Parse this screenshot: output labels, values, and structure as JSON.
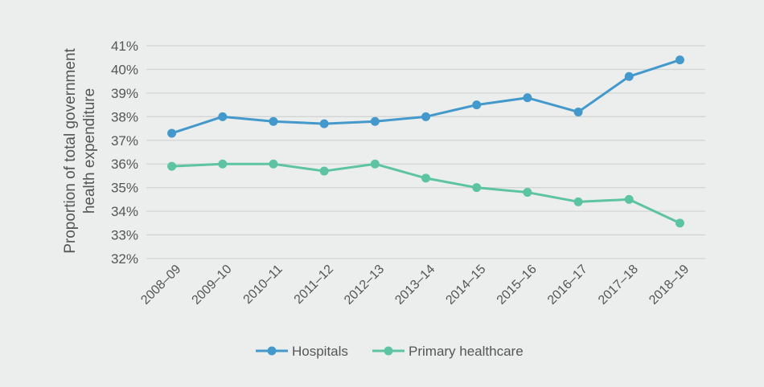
{
  "chart_data": {
    "type": "line",
    "title": "",
    "xlabel": "",
    "ylabel": "Proportion of total government health expenditure",
    "ylabel_lines": [
      "Proportion of total government",
      "health expenditure"
    ],
    "ylim": [
      32,
      41
    ],
    "yticks": [
      "32%",
      "33%",
      "34%",
      "35%",
      "36%",
      "37%",
      "38%",
      "39%",
      "40%",
      "41%"
    ],
    "grid": true,
    "legend_position": "bottom",
    "categories": [
      "2008–09",
      "2009–10",
      "2010–11",
      "2011–12",
      "2012–13",
      "2013–14",
      "2014–15",
      "2015–16",
      "2016–17",
      "2017–18",
      "2018–19"
    ],
    "series": [
      {
        "name": "Hospitals",
        "color": "#4499cc",
        "values": [
          37.3,
          38.0,
          37.8,
          37.7,
          37.8,
          38.0,
          38.5,
          38.8,
          38.2,
          39.7,
          40.4
        ]
      },
      {
        "name": "Primary healthcare",
        "color": "#5cc4a2",
        "values": [
          35.9,
          36.0,
          36.0,
          35.7,
          36.0,
          35.4,
          35.0,
          34.8,
          34.4,
          34.5,
          33.5
        ]
      }
    ]
  }
}
